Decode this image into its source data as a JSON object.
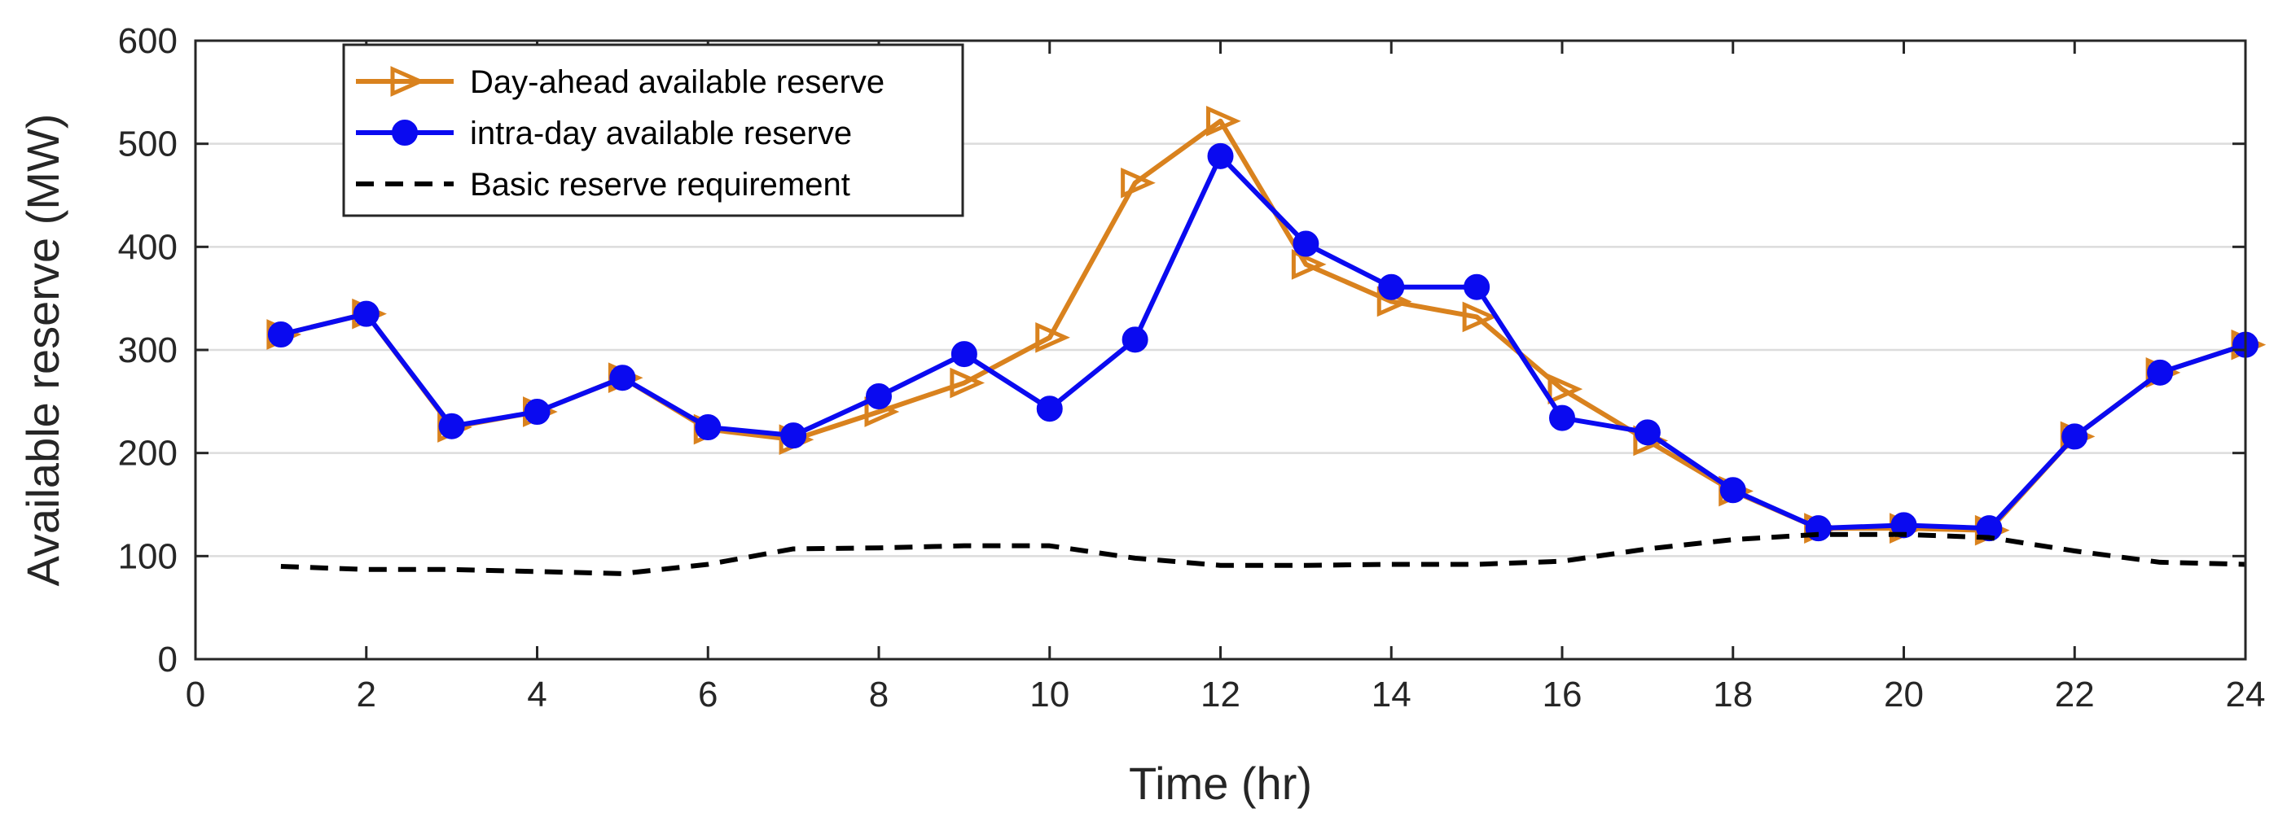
{
  "chart_data": {
    "type": "line",
    "title": "",
    "xlabel": "Time (hr)",
    "ylabel": "Available reserve (MW)",
    "xlim": [
      0,
      24
    ],
    "ylim": [
      0,
      600
    ],
    "xticks": [
      0,
      2,
      4,
      6,
      8,
      10,
      12,
      14,
      16,
      18,
      20,
      22,
      24
    ],
    "yticks": [
      0,
      100,
      200,
      300,
      400,
      500,
      600
    ],
    "grid": "horizontal",
    "legend_position": "top-left",
    "x": [
      1,
      2,
      3,
      4,
      5,
      6,
      7,
      8,
      9,
      10,
      11,
      12,
      13,
      14,
      15,
      16,
      17,
      18,
      19,
      20,
      21,
      22,
      23,
      24
    ],
    "series": [
      {
        "name": "Day-ahead available reserve",
        "color": "#D9821E",
        "marker": "triangle-right-open",
        "line": "solid",
        "values": [
          315,
          335,
          225,
          240,
          273,
          223,
          213,
          240,
          268,
          312,
          462,
          522,
          383,
          347,
          332,
          262,
          212,
          163,
          127,
          127,
          125,
          216,
          278,
          305
        ]
      },
      {
        "name": "intra-day available reserve",
        "color": "#0A0AF0",
        "marker": "circle-filled",
        "line": "solid",
        "values": [
          315,
          335,
          226,
          240,
          273,
          225,
          217,
          255,
          296,
          243,
          310,
          488,
          403,
          361,
          361,
          234,
          220,
          164,
          127,
          130,
          127,
          216,
          278,
          305
        ]
      },
      {
        "name": "Basic reserve requirement",
        "color": "#000000",
        "marker": "none",
        "line": "dashed",
        "values": [
          90,
          87,
          87,
          85,
          83,
          92,
          107,
          108,
          110,
          110,
          98,
          91,
          91,
          92,
          92,
          95,
          107,
          116,
          121,
          121,
          118,
          105,
          94,
          92
        ]
      }
    ]
  }
}
